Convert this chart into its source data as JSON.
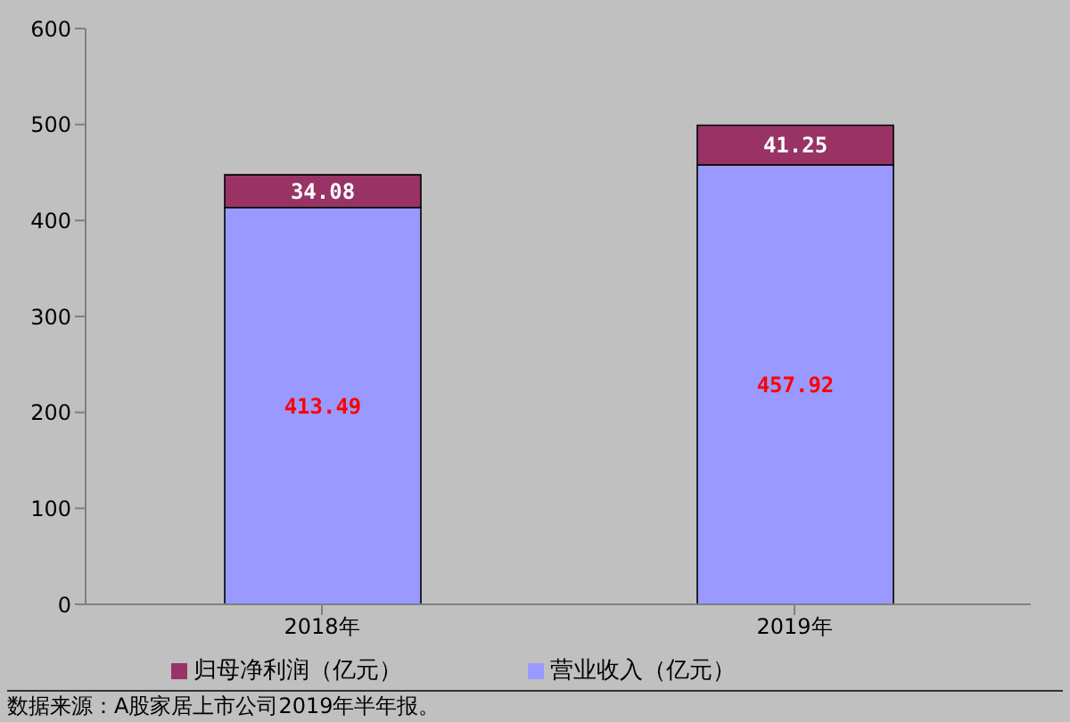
{
  "chart_data": {
    "type": "bar",
    "stacked": true,
    "categories": [
      "2018年",
      "2019年"
    ],
    "series": [
      {
        "name": "营业收入（亿元）",
        "color": "#9999ff",
        "values": [
          413.49,
          457.92
        ]
      },
      {
        "name": "归母净利润（亿元）",
        "color": "#993366",
        "values": [
          34.08,
          41.25
        ]
      }
    ],
    "ylim": [
      0,
      600
    ],
    "yticks": [
      0,
      100,
      200,
      300,
      400,
      500,
      600
    ],
    "grid": false,
    "legend": "bottom",
    "data_labels": true,
    "annotations": [
      "数据来源：A股家居上市公司2019年半年报。"
    ]
  }
}
